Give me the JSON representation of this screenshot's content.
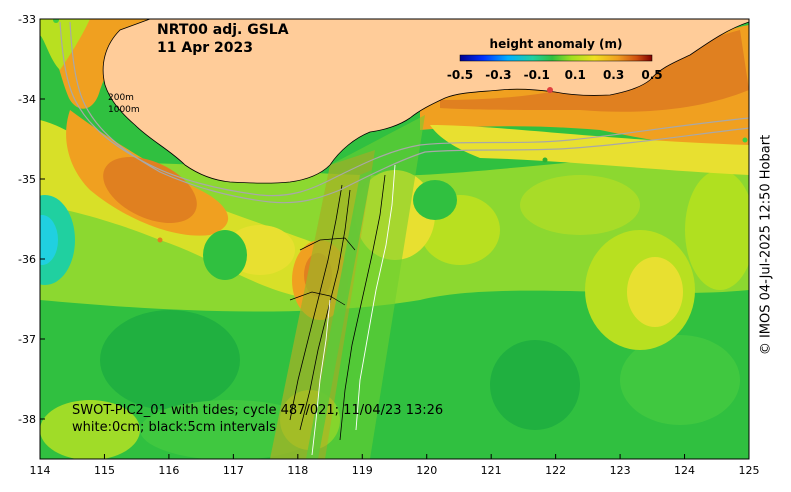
{
  "title": {
    "line1": "NRT00 adj. GSLA",
    "line2": "11 Apr 2023"
  },
  "colorbar": {
    "label": "height anomaly (m)",
    "ticks": [
      "-0.5",
      "-0.3",
      "-0.1",
      "0.1",
      "0.3",
      "0.5"
    ],
    "range": [
      -0.5,
      0.5
    ]
  },
  "isobaths": {
    "label_200": "200m",
    "label_1000": "1000m"
  },
  "swath_note": {
    "line1": "SWOT-PIC2_01 with tides; cycle 487/021; 11/04/23 13:26",
    "line2": "white:0cm; black:5cm intervals"
  },
  "credit": "© IMOS 04-Jul-2025 12:50 Hobart",
  "axes": {
    "lon_ticks": [
      "114",
      "115",
      "116",
      "117",
      "118",
      "119",
      "120",
      "121",
      "122",
      "123",
      "124",
      "125"
    ],
    "lat_ticks": [
      "-33",
      "-34",
      "-35",
      "-36",
      "-37",
      "-38"
    ],
    "lon_range": [
      114,
      125
    ],
    "lat_range": [
      -38.5,
      -33
    ]
  },
  "colors": {
    "land": "#FFCC99",
    "positive_high": "#CC4400",
    "positive_mid": "#F0A020",
    "near_zero": "#B8E020",
    "negative_low": "#30C040",
    "negative_high": "#20D0E0",
    "isobath": "#A8A8A8"
  }
}
